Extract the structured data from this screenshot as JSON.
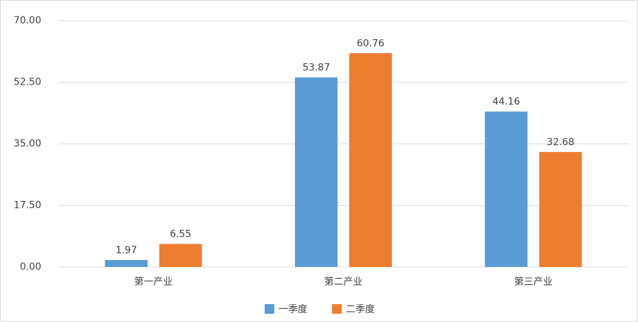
{
  "chart_data": {
    "type": "bar",
    "categories": [
      "第一产业",
      "第二产业",
      "第三产业"
    ],
    "series": [
      {
        "name": "一季度",
        "color": "#5b9bd5",
        "values": [
          1.97,
          53.87,
          44.16
        ]
      },
      {
        "name": "二季度",
        "color": "#ed7d31",
        "values": [
          6.55,
          60.76,
          32.68
        ]
      }
    ],
    "ylim": [
      0,
      70
    ],
    "yticks": [
      {
        "value": 0,
        "label": "0.00"
      },
      {
        "value": 17.5,
        "label": "17.50"
      },
      {
        "value": 35,
        "label": "35.00"
      },
      {
        "value": 52.5,
        "label": "52.50"
      },
      {
        "value": 70,
        "label": "70.00"
      }
    ],
    "grid": true,
    "legend": "bottom"
  }
}
